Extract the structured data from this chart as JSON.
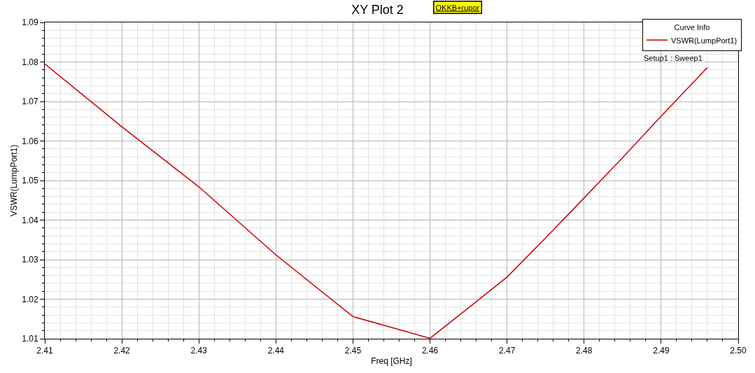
{
  "chart_data": {
    "type": "line",
    "title": "XY Plot 2",
    "subtitle": "OKKB+rupor",
    "xlabel": "Freq [GHz]",
    "ylabel": "VSWR(LumpPort1)",
    "legend_title": "Curve Info",
    "legend": "top right",
    "grid": true,
    "marker": "none",
    "line_style": "solid",
    "annotations": [
      "Setup1 : Sweep1"
    ],
    "x": [
      2.41,
      2.42,
      2.43,
      2.44,
      2.45,
      2.46,
      2.465,
      2.47,
      2.475,
      2.48,
      2.485,
      2.49,
      2.496
    ],
    "series": [
      {
        "name": "VSWR(LumpPort1)",
        "color": "#cc0000",
        "values": [
          1.0795,
          1.0636,
          1.0484,
          1.0312,
          1.0156,
          1.0101,
          1.0178,
          1.0256,
          1.0355,
          1.0456,
          1.0558,
          1.0663,
          1.0786
        ]
      }
    ],
    "xlim": [
      2.41,
      2.5
    ],
    "ylim": [
      1.01,
      1.09
    ],
    "xticks": [
      2.41,
      {
        "value": 2.412,
        "label": null
      },
      {
        "value": 2.414,
        "label": null
      },
      {
        "value": 2.416,
        "label": null
      },
      {
        "value": 2.418,
        "label": null
      },
      2.42,
      {
        "value": 2.422,
        "label": null
      },
      {
        "value": 2.424,
        "label": null
      },
      {
        "value": 2.426,
        "label": null
      },
      {
        "value": 2.428,
        "label": null
      },
      2.43,
      {
        "value": 2.432,
        "label": null
      },
      {
        "value": 2.434,
        "label": null
      },
      {
        "value": 2.436,
        "label": null
      },
      {
        "value": 2.438,
        "label": null
      },
      2.44,
      {
        "value": 2.442,
        "label": null
      },
      {
        "value": 2.444,
        "label": null
      },
      {
        "value": 2.446,
        "label": null
      },
      {
        "value": 2.448,
        "label": null
      },
      2.45,
      {
        "value": 2.452,
        "label": null
      },
      {
        "value": 2.454,
        "label": null
      },
      {
        "value": 2.456,
        "label": null
      },
      {
        "value": 2.458,
        "label": null
      },
      2.46,
      {
        "value": 2.462,
        "label": null
      },
      {
        "value": 2.464,
        "label": null
      },
      {
        "value": 2.466,
        "label": null
      },
      {
        "value": 2.468,
        "label": null
      },
      2.47,
      {
        "value": 2.472,
        "label": null
      },
      {
        "value": 2.474,
        "label": null
      },
      {
        "value": 2.476,
        "label": null
      },
      {
        "value": 2.478,
        "label": null
      },
      2.48,
      {
        "value": 2.482,
        "label": null
      },
      {
        "value": 2.484,
        "label": null
      },
      {
        "value": 2.486,
        "label": null
      },
      {
        "value": 2.488,
        "label": null
      },
      2.49,
      {
        "value": 2.492,
        "label": null
      },
      {
        "value": 2.494,
        "label": null
      },
      {
        "value": 2.496,
        "label": null
      },
      {
        "value": 2.498,
        "label": null
      },
      {
        "value": 2.5,
        "label": "2.50"
      }
    ],
    "yticks": [
      1.01,
      {
        "value": 1.012,
        "label": null
      },
      {
        "value": 1.014,
        "label": null
      },
      {
        "value": 1.016,
        "label": null
      },
      {
        "value": 1.018,
        "label": null
      },
      1.02,
      {
        "value": 1.022,
        "label": null
      },
      {
        "value": 1.024,
        "label": null
      },
      {
        "value": 1.026,
        "label": null
      },
      {
        "value": 1.028,
        "label": null
      },
      1.03,
      {
        "value": 1.032,
        "label": null
      },
      {
        "value": 1.034,
        "label": null
      },
      {
        "value": 1.036,
        "label": null
      },
      {
        "value": 1.038,
        "label": null
      },
      1.04,
      {
        "value": 1.042,
        "label": null
      },
      {
        "value": 1.044,
        "label": null
      },
      {
        "value": 1.046,
        "label": null
      },
      {
        "value": 1.048,
        "label": null
      },
      1.05,
      {
        "value": 1.052,
        "label": null
      },
      {
        "value": 1.054,
        "label": null
      },
      {
        "value": 1.056,
        "label": null
      },
      {
        "value": 1.058,
        "label": null
      },
      1.06,
      {
        "value": 1.062,
        "label": null
      },
      {
        "value": 1.064,
        "label": null
      },
      {
        "value": 1.066,
        "label": null
      },
      {
        "value": 1.068,
        "label": null
      },
      1.07,
      {
        "value": 1.072,
        "label": null
      },
      {
        "value": 1.074,
        "label": null
      },
      {
        "value": 1.076,
        "label": null
      },
      {
        "value": 1.078,
        "label": null
      },
      1.08,
      {
        "value": 1.082,
        "label": null
      },
      {
        "value": 1.084,
        "label": null
      },
      {
        "value": 1.086,
        "label": null
      },
      {
        "value": 1.088,
        "label": null
      },
      1.09
    ]
  }
}
